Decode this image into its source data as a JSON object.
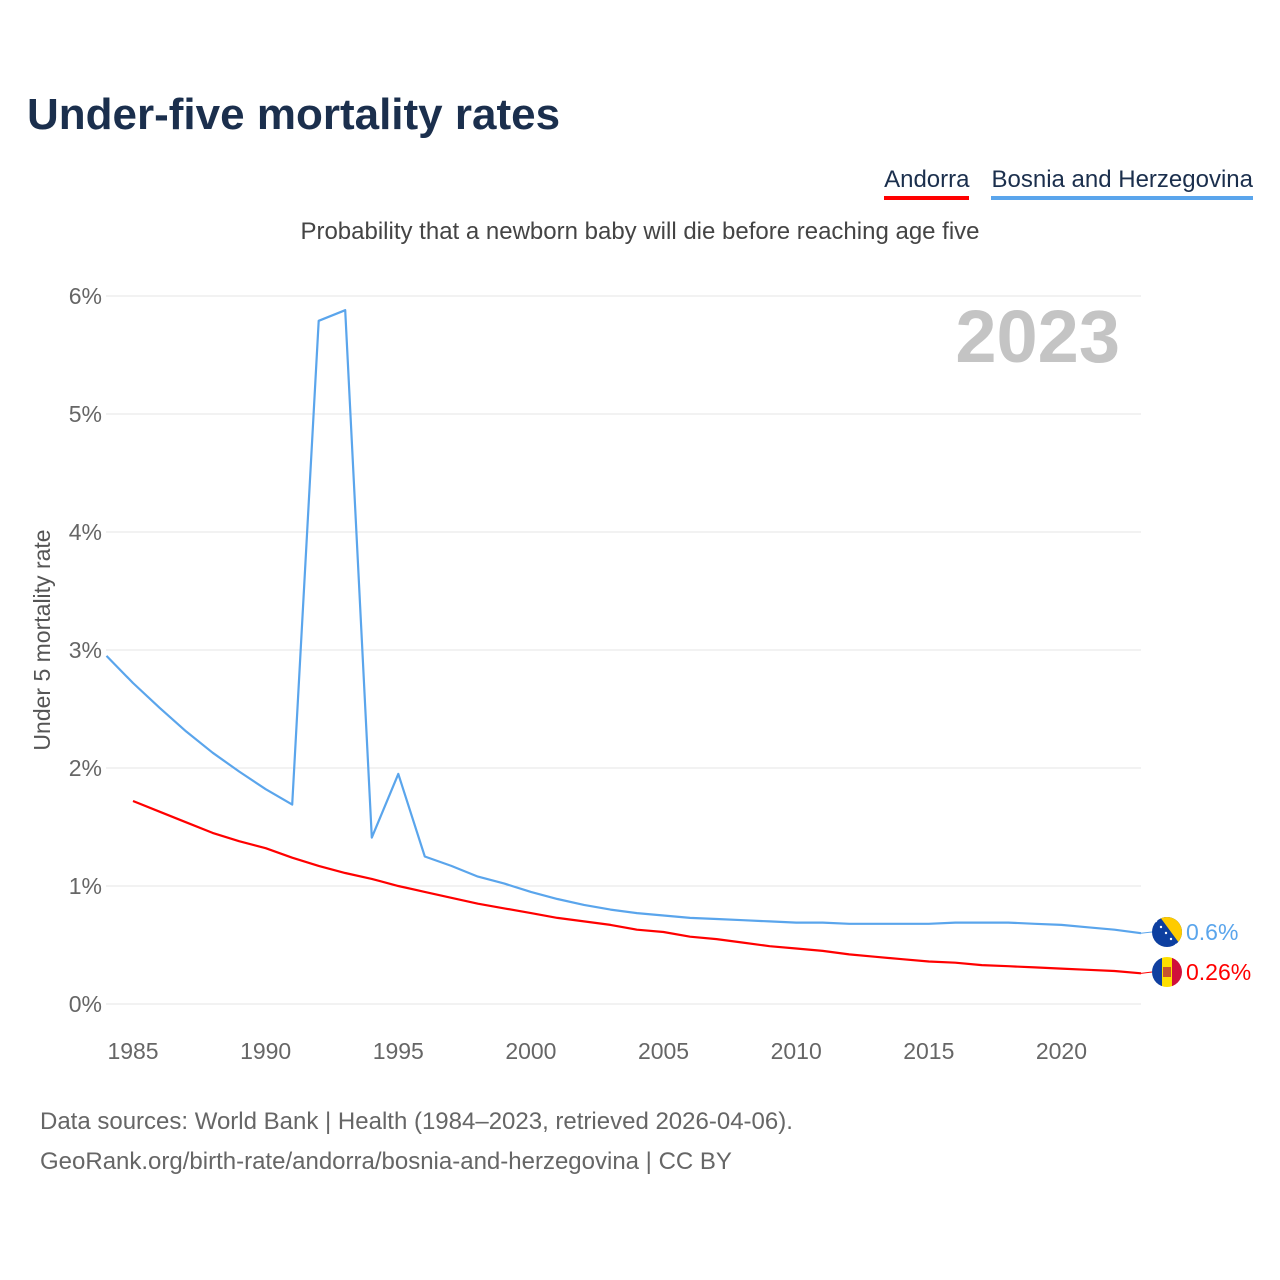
{
  "title": "Under-five mortality rates",
  "subtitle": "Probability that a newborn baby will die before reaching age five",
  "legend": [
    {
      "label": "Andorra",
      "color": "#ff0000"
    },
    {
      "label": "Bosnia and Herzegovina",
      "color": "#5aa5ec"
    }
  ],
  "footer": {
    "line1": "Data sources: World Bank | Health (1984–2023, retrieved 2026-04-06).",
    "line2": "GeoRank.org/birth-rate/andorra/bosnia-and-herzegovina | CC BY"
  },
  "chart_data": {
    "type": "line",
    "title": "Under-five mortality rates",
    "ylabel": "Under 5 mortality rate",
    "xlabel": "",
    "year_watermark": "2023",
    "xlim": [
      1984,
      2023
    ],
    "ylim": [
      0,
      6
    ],
    "xticks": [
      1985,
      1990,
      1995,
      2000,
      2005,
      2010,
      2015,
      2020
    ],
    "yticks": [
      0,
      1,
      2,
      3,
      4,
      5,
      6
    ],
    "ytick_labels": [
      "0%",
      "1%",
      "2%",
      "3%",
      "4%",
      "5%",
      "6%"
    ],
    "grid": true,
    "series": [
      {
        "name": "Bosnia and Herzegovina",
        "color": "#5aa5ec",
        "flag": "bosnia-flag",
        "end_label": "0.6%",
        "x": [
          1984,
          1985,
          1986,
          1987,
          1988,
          1989,
          1990,
          1991,
          1992,
          1993,
          1994,
          1995,
          1996,
          1997,
          1998,
          1999,
          2000,
          2001,
          2002,
          2003,
          2004,
          2005,
          2006,
          2007,
          2008,
          2009,
          2010,
          2011,
          2012,
          2013,
          2014,
          2015,
          2016,
          2017,
          2018,
          2019,
          2020,
          2021,
          2022,
          2023
        ],
        "values": [
          2.95,
          2.72,
          2.51,
          2.31,
          2.13,
          1.97,
          1.82,
          1.69,
          5.79,
          5.88,
          1.41,
          1.95,
          1.25,
          1.17,
          1.08,
          1.02,
          0.95,
          0.89,
          0.84,
          0.8,
          0.77,
          0.75,
          0.73,
          0.72,
          0.71,
          0.7,
          0.69,
          0.69,
          0.68,
          0.68,
          0.68,
          0.68,
          0.69,
          0.69,
          0.69,
          0.68,
          0.67,
          0.65,
          0.63,
          0.6
        ]
      },
      {
        "name": "Andorra",
        "color": "#ff0000",
        "flag": "andorra-flag",
        "end_label": "0.26%",
        "x": [
          1985,
          1986,
          1987,
          1988,
          1989,
          1990,
          1991,
          1992,
          1993,
          1994,
          1995,
          1996,
          1997,
          1998,
          1999,
          2000,
          2001,
          2002,
          2003,
          2004,
          2005,
          2006,
          2007,
          2008,
          2009,
          2010,
          2011,
          2012,
          2013,
          2014,
          2015,
          2016,
          2017,
          2018,
          2019,
          2020,
          2021,
          2022,
          2023
        ],
        "values": [
          1.72,
          1.63,
          1.54,
          1.45,
          1.38,
          1.32,
          1.24,
          1.17,
          1.11,
          1.06,
          1.0,
          0.95,
          0.9,
          0.85,
          0.81,
          0.77,
          0.73,
          0.7,
          0.67,
          0.63,
          0.61,
          0.57,
          0.55,
          0.52,
          0.49,
          0.47,
          0.45,
          0.42,
          0.4,
          0.38,
          0.36,
          0.35,
          0.33,
          0.32,
          0.31,
          0.3,
          0.29,
          0.28,
          0.26
        ]
      }
    ]
  }
}
